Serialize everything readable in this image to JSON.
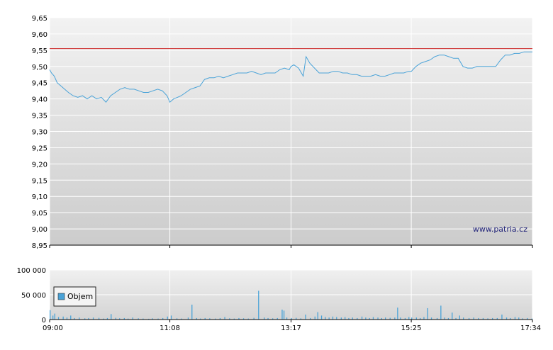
{
  "chart_data": [
    {
      "type": "line",
      "x_labels": [
        "09:00",
        "11:08",
        "13:17",
        "15:25",
        "17:34"
      ],
      "x_range": [
        "09:00",
        "17:34"
      ],
      "ylim": [
        8.95,
        9.65
      ],
      "y_ticks": [
        "9,65",
        "9,60",
        "9,55",
        "9,50",
        "9,45",
        "9,40",
        "9,35",
        "9,30",
        "9,25",
        "9,20",
        "9,15",
        "9,10",
        "9,05",
        "9,00",
        "8,95"
      ],
      "reference_line": {
        "value": 9.555,
        "color": "#cc2222"
      },
      "grid": true,
      "line_color": "#4aa3d8",
      "series": [
        {
          "points": [
            [
              "09:00",
              9.49
            ],
            [
              "09:02",
              9.48
            ],
            [
              "09:05",
              9.47
            ],
            [
              "09:08",
              9.45
            ],
            [
              "09:12",
              9.44
            ],
            [
              "09:16",
              9.43
            ],
            [
              "09:20",
              9.42
            ],
            [
              "09:25",
              9.41
            ],
            [
              "09:30",
              9.405
            ],
            [
              "09:35",
              9.41
            ],
            [
              "09:40",
              9.4
            ],
            [
              "09:45",
              9.41
            ],
            [
              "09:50",
              9.4
            ],
            [
              "09:55",
              9.405
            ],
            [
              "10:00",
              9.39
            ],
            [
              "10:05",
              9.41
            ],
            [
              "10:10",
              9.42
            ],
            [
              "10:15",
              9.43
            ],
            [
              "10:20",
              9.435
            ],
            [
              "10:25",
              9.43
            ],
            [
              "10:30",
              9.43
            ],
            [
              "10:35",
              9.425
            ],
            [
              "10:40",
              9.42
            ],
            [
              "10:45",
              9.42
            ],
            [
              "10:50",
              9.425
            ],
            [
              "10:55",
              9.43
            ],
            [
              "11:00",
              9.425
            ],
            [
              "11:05",
              9.41
            ],
            [
              "11:08",
              9.39
            ],
            [
              "11:12",
              9.4
            ],
            [
              "11:16",
              9.405
            ],
            [
              "11:20",
              9.41
            ],
            [
              "11:25",
              9.42
            ],
            [
              "11:30",
              9.43
            ],
            [
              "11:35",
              9.435
            ],
            [
              "11:40",
              9.44
            ],
            [
              "11:45",
              9.46
            ],
            [
              "11:50",
              9.465
            ],
            [
              "11:55",
              9.465
            ],
            [
              "12:00",
              9.47
            ],
            [
              "12:05",
              9.465
            ],
            [
              "12:10",
              9.47
            ],
            [
              "12:15",
              9.475
            ],
            [
              "12:20",
              9.48
            ],
            [
              "12:25",
              9.48
            ],
            [
              "12:30",
              9.48
            ],
            [
              "12:35",
              9.485
            ],
            [
              "12:40",
              9.48
            ],
            [
              "12:45",
              9.475
            ],
            [
              "12:50",
              9.48
            ],
            [
              "12:55",
              9.48
            ],
            [
              "13:00",
              9.48
            ],
            [
              "13:05",
              9.49
            ],
            [
              "13:10",
              9.495
            ],
            [
              "13:15",
              9.49
            ],
            [
              "13:17",
              9.5
            ],
            [
              "13:20",
              9.505
            ],
            [
              "13:25",
              9.495
            ],
            [
              "13:30",
              9.47
            ],
            [
              "13:33",
              9.53
            ],
            [
              "13:37",
              9.51
            ],
            [
              "13:42",
              9.495
            ],
            [
              "13:47",
              9.48
            ],
            [
              "13:52",
              9.48
            ],
            [
              "13:57",
              9.48
            ],
            [
              "14:02",
              9.485
            ],
            [
              "14:07",
              9.485
            ],
            [
              "14:12",
              9.48
            ],
            [
              "14:17",
              9.48
            ],
            [
              "14:22",
              9.475
            ],
            [
              "14:27",
              9.475
            ],
            [
              "14:32",
              9.47
            ],
            [
              "14:37",
              9.47
            ],
            [
              "14:42",
              9.47
            ],
            [
              "14:47",
              9.475
            ],
            [
              "14:52",
              9.47
            ],
            [
              "14:57",
              9.47
            ],
            [
              "15:02",
              9.475
            ],
            [
              "15:07",
              9.48
            ],
            [
              "15:12",
              9.48
            ],
            [
              "15:17",
              9.48
            ],
            [
              "15:22",
              9.485
            ],
            [
              "15:25",
              9.485
            ],
            [
              "15:30",
              9.5
            ],
            [
              "15:35",
              9.51
            ],
            [
              "15:40",
              9.515
            ],
            [
              "15:45",
              9.52
            ],
            [
              "15:50",
              9.53
            ],
            [
              "15:55",
              9.535
            ],
            [
              "16:00",
              9.535
            ],
            [
              "16:05",
              9.53
            ],
            [
              "16:10",
              9.525
            ],
            [
              "16:15",
              9.525
            ],
            [
              "16:20",
              9.5
            ],
            [
              "16:25",
              9.495
            ],
            [
              "16:30",
              9.495
            ],
            [
              "16:35",
              9.5
            ],
            [
              "16:40",
              9.5
            ],
            [
              "16:45",
              9.5
            ],
            [
              "16:50",
              9.5
            ],
            [
              "16:55",
              9.5
            ],
            [
              "17:00",
              9.52
            ],
            [
              "17:05",
              9.535
            ],
            [
              "17:10",
              9.535
            ],
            [
              "17:15",
              9.54
            ],
            [
              "17:20",
              9.54
            ],
            [
              "17:25",
              9.545
            ],
            [
              "17:30",
              9.545
            ],
            [
              "17:34",
              9.545
            ]
          ]
        }
      ]
    },
    {
      "type": "bar",
      "x_range": [
        "09:00",
        "17:34"
      ],
      "ylim": [
        0,
        100000
      ],
      "y_ticks": [
        "100 000",
        "50 000",
        "0"
      ],
      "grid": true,
      "bar_color": "#4aa3d8",
      "legend": {
        "label": "Objem",
        "placement": "left"
      },
      "series": [
        {
          "name": "Objem",
          "points": [
            [
              "09:00",
              19000
            ],
            [
              "09:03",
              8000
            ],
            [
              "09:05",
              12000
            ],
            [
              "09:09",
              5000
            ],
            [
              "09:14",
              6000
            ],
            [
              "09:18",
              4000
            ],
            [
              "09:22",
              8000
            ],
            [
              "09:26",
              3000
            ],
            [
              "09:31",
              4000
            ],
            [
              "09:37",
              2500
            ],
            [
              "09:41",
              3000
            ],
            [
              "09:46",
              4000
            ],
            [
              "09:52",
              3500
            ],
            [
              "09:57",
              2000
            ],
            [
              "10:01",
              3000
            ],
            [
              "10:05",
              11000
            ],
            [
              "10:10",
              3500
            ],
            [
              "10:14",
              2500
            ],
            [
              "10:19",
              3000
            ],
            [
              "10:23",
              2000
            ],
            [
              "10:28",
              4000
            ],
            [
              "10:34",
              2500
            ],
            [
              "10:39",
              2000
            ],
            [
              "10:45",
              1500
            ],
            [
              "10:49",
              2500
            ],
            [
              "10:55",
              2000
            ],
            [
              "11:00",
              3000
            ],
            [
              "11:05",
              6000
            ],
            [
              "11:09",
              8000
            ],
            [
              "11:15",
              2500
            ],
            [
              "11:20",
              2000
            ],
            [
              "11:27",
              4000
            ],
            [
              "11:31",
              30000
            ],
            [
              "11:36",
              3000
            ],
            [
              "11:40",
              2000
            ],
            [
              "11:45",
              3000
            ],
            [
              "11:50",
              2500
            ],
            [
              "11:56",
              2000
            ],
            [
              "12:01",
              3000
            ],
            [
              "12:06",
              5000
            ],
            [
              "12:11",
              2500
            ],
            [
              "12:16",
              2000
            ],
            [
              "12:21",
              3000
            ],
            [
              "12:26",
              2500
            ],
            [
              "12:31",
              2000
            ],
            [
              "12:37",
              3500
            ],
            [
              "12:42",
              58000
            ],
            [
              "12:48",
              4000
            ],
            [
              "12:52",
              3000
            ],
            [
              "12:57",
              2500
            ],
            [
              "13:02",
              3000
            ],
            [
              "13:07",
              20000
            ],
            [
              "13:09",
              18000
            ],
            [
              "13:12",
              4000
            ],
            [
              "13:17",
              3000
            ],
            [
              "13:22",
              3500
            ],
            [
              "13:27",
              2500
            ],
            [
              "13:32",
              10000
            ],
            [
              "13:37",
              3000
            ],
            [
              "13:42",
              6000
            ],
            [
              "13:45",
              15000
            ],
            [
              "13:49",
              8000
            ],
            [
              "13:53",
              5000
            ],
            [
              "13:57",
              4000
            ],
            [
              "14:01",
              6000
            ],
            [
              "14:05",
              5000
            ],
            [
              "14:10",
              4000
            ],
            [
              "14:14",
              5000
            ],
            [
              "14:18",
              3000
            ],
            [
              "14:22",
              4000
            ],
            [
              "14:27",
              3000
            ],
            [
              "14:32",
              6000
            ],
            [
              "14:36",
              4000
            ],
            [
              "14:40",
              3000
            ],
            [
              "14:44",
              5000
            ],
            [
              "14:49",
              4000
            ],
            [
              "14:53",
              3000
            ],
            [
              "14:57",
              4000
            ],
            [
              "15:02",
              3500
            ],
            [
              "15:07",
              4000
            ],
            [
              "15:10",
              24000
            ],
            [
              "15:13",
              4000
            ],
            [
              "15:18",
              3000
            ],
            [
              "15:22",
              5000
            ],
            [
              "15:25",
              4000
            ],
            [
              "15:30",
              4000
            ],
            [
              "15:34",
              3000
            ],
            [
              "15:38",
              5000
            ],
            [
              "15:42",
              23000
            ],
            [
              "15:46",
              4000
            ],
            [
              "15:52",
              3000
            ],
            [
              "15:56",
              28000
            ],
            [
              "16:00",
              4000
            ],
            [
              "16:04",
              3000
            ],
            [
              "16:08",
              14000
            ],
            [
              "16:12",
              3000
            ],
            [
              "16:16",
              8000
            ],
            [
              "16:20",
              4000
            ],
            [
              "16:26",
              3000
            ],
            [
              "16:31",
              4000
            ],
            [
              "16:36",
              3000
            ],
            [
              "16:41",
              3000
            ],
            [
              "16:46",
              2500
            ],
            [
              "16:51",
              3000
            ],
            [
              "16:56",
              3000
            ],
            [
              "17:01",
              10000
            ],
            [
              "17:06",
              4000
            ],
            [
              "17:10",
              3000
            ],
            [
              "17:15",
              5000
            ],
            [
              "17:19",
              4000
            ],
            [
              "17:23",
              2500
            ],
            [
              "17:28",
              3000
            ],
            [
              "17:33",
              2000
            ]
          ]
        }
      ]
    }
  ],
  "watermark": "www.patria.cz"
}
